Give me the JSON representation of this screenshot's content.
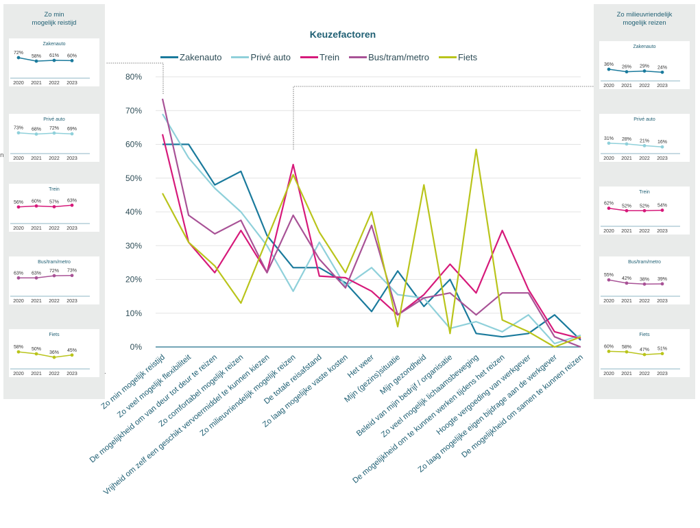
{
  "chart_data": [
    {
      "type": "line",
      "title": "Keuzefactoren",
      "ylim": [
        0,
        80
      ],
      "y_ticks": [
        "0%",
        "10%",
        "20%",
        "30%",
        "40%",
        "50%",
        "60%",
        "70%",
        "80%"
      ],
      "grid": true,
      "legend_position": "top",
      "categories": [
        "Zo min mogelijk reistijd",
        "Zo veel mogelijk flexibiliteit",
        "De mogelijkheid om van deur tot deur te reizen",
        "Zo comfortabel mogelijk reizen",
        "Vrijheid om zelf een geschikt vervoermiddel te kunnen kiezen",
        "Zo milieuvriendelijk mogelijk reizen",
        "De totale reisafstand",
        "Zo laag mogelijke vaste kosten",
        "Het weer",
        "Mijn (gezins)situatie",
        "Mijn gezondheid",
        "Beleid van mijn bedrijf / organisatie",
        "Zo veel mogelijk lichaamsbeweging",
        "De mogelijkheid om te kunnen werken tijdens het reizen",
        "Hoogte vergoeding van werkgever",
        "Zo laag mogelijke eigen bijdrage aan de werkgever",
        "De mogelijkheid om samen te kunnen reizen"
      ],
      "series": [
        {
          "name": "Zakenauto",
          "color": "#1a7a9c",
          "values": [
            60,
            60,
            48,
            52,
            33,
            23.5,
            23.5,
            19,
            10.5,
            22.5,
            12,
            20,
            4,
            3,
            4,
            9.5,
            2
          ]
        },
        {
          "name": "Privé auto",
          "color": "#8fd0da",
          "values": [
            69,
            56,
            47,
            40,
            30,
            16.5,
            31,
            18,
            23.5,
            15.5,
            14.5,
            5.5,
            7.5,
            4.5,
            9.5,
            1,
            3.5
          ]
        },
        {
          "name": "Trein",
          "color": "#d6197a",
          "values": [
            63,
            31,
            22,
            34.5,
            22,
            54,
            21,
            20.5,
            16.5,
            9.5,
            15.5,
            24.5,
            16,
            34.5,
            17,
            4.5,
            2.5
          ]
        },
        {
          "name": "Bus/tram/metro",
          "color": "#a85296",
          "values": [
            73.5,
            39,
            33.5,
            37.5,
            22,
            39,
            26,
            17.5,
            36,
            9.5,
            14.5,
            16,
            9.5,
            16,
            16,
            3,
            0
          ]
        },
        {
          "name": "Fiets",
          "color": "#b9c41b",
          "values": [
            45.5,
            31,
            24,
            13,
            32,
            51,
            34,
            22,
            40,
            6,
            48,
            4,
            58.5,
            8,
            4.5,
            0,
            3
          ]
        }
      ]
    }
  ],
  "left_panel": {
    "title_line1": "Zo min",
    "title_line2": "mogelijk reistijd",
    "cards": [
      {
        "name": "Zakenauto",
        "color": "#1a7a9c",
        "years": [
          "2020",
          "2021",
          "2022",
          "2023"
        ],
        "values": [
          72,
          58,
          61,
          60
        ],
        "labels": [
          "72%",
          "58%",
          "61%",
          "60%"
        ]
      },
      {
        "name": "Privé auto",
        "color": "#8fd0da",
        "years": [
          "2020",
          "2021",
          "2022",
          "2023"
        ],
        "values": [
          73,
          68,
          72,
          69
        ],
        "labels": [
          "73%",
          "68%",
          "72%",
          "69%"
        ]
      },
      {
        "name": "Trein",
        "color": "#d6197a",
        "years": [
          "2020",
          "2021",
          "2022",
          "2023"
        ],
        "values": [
          56,
          60,
          57,
          63
        ],
        "labels": [
          "56%",
          "60%",
          "57%",
          "63%"
        ]
      },
      {
        "name": "Bus/tram/metro",
        "color": "#a85296",
        "years": [
          "2020",
          "2021",
          "2022",
          "2023"
        ],
        "values": [
          63,
          63,
          72,
          73
        ],
        "labels": [
          "63%",
          "63%",
          "72%",
          "73%"
        ]
      },
      {
        "name": "Fiets",
        "color": "#b9c41b",
        "years": [
          "2020",
          "2021",
          "2022",
          "2023"
        ],
        "values": [
          58,
          50,
          36,
          45
        ],
        "labels": [
          "58%",
          "50%",
          "36%",
          "45%"
        ]
      }
    ]
  },
  "right_panel": {
    "title_line1": "Zo milieuvriendelijk",
    "title_line2": "mogelijk reizen",
    "cards": [
      {
        "name": "Zakenauto",
        "color": "#1a7a9c",
        "years": [
          "2020",
          "2021",
          "2022",
          "2023"
        ],
        "values": [
          36,
          26,
          29,
          24
        ],
        "labels": [
          "36%",
          "26%",
          "29%",
          "24%"
        ]
      },
      {
        "name": "Privé auto",
        "color": "#8fd0da",
        "years": [
          "2020",
          "2021",
          "2022",
          "2023"
        ],
        "values": [
          31,
          28,
          21,
          16
        ],
        "labels": [
          "31%",
          "28%",
          "21%",
          "16%"
        ]
      },
      {
        "name": "Trein",
        "color": "#d6197a",
        "years": [
          "2020",
          "2021",
          "2022",
          "2023"
        ],
        "values": [
          62,
          52,
          52,
          54
        ],
        "labels": [
          "62%",
          "52%",
          "52%",
          "54%"
        ]
      },
      {
        "name": "Bus/tram/metro",
        "color": "#a85296",
        "years": [
          "2020",
          "2021",
          "2022",
          "2023"
        ],
        "values": [
          55,
          42,
          38,
          39
        ],
        "labels": [
          "55%",
          "42%",
          "38%",
          "39%"
        ]
      },
      {
        "name": "Fiets",
        "color": "#b9c41b",
        "years": [
          "2020",
          "2021",
          "2022",
          "2023"
        ],
        "values": [
          60,
          58,
          47,
          51
        ],
        "labels": [
          "60%",
          "58%",
          "47%",
          "51%"
        ]
      }
    ]
  },
  "stray_marks": {
    "n": "n",
    "dot": "."
  }
}
